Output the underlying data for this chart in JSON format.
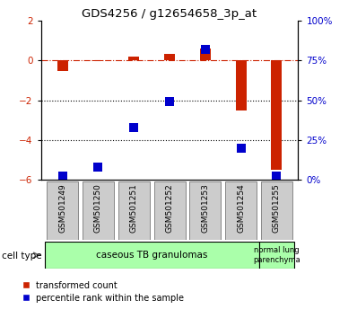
{
  "title": "GDS4256 / g12654658_3p_at",
  "samples": [
    "GSM501249",
    "GSM501250",
    "GSM501251",
    "GSM501252",
    "GSM501253",
    "GSM501254",
    "GSM501255"
  ],
  "red_values": [
    -0.55,
    -0.05,
    0.2,
    0.35,
    0.6,
    -2.5,
    -5.5
  ],
  "blue_percentiles": [
    2,
    8,
    33,
    49,
    82,
    20,
    2
  ],
  "ylim_left": [
    -6,
    2
  ],
  "ylim_right": [
    0,
    100
  ],
  "yticks_left": [
    -6,
    -4,
    -2,
    0,
    2
  ],
  "yticks_right": [
    0,
    25,
    50,
    75,
    100
  ],
  "ytick_labels_right": [
    "0%",
    "25%",
    "50%",
    "75%",
    "100%"
  ],
  "red_color": "#cc2200",
  "blue_color": "#0000cc",
  "bar_width": 0.3,
  "hline_color": "#cc2200",
  "dotted_line_color": "#000000",
  "legend_red": "transformed count",
  "legend_blue": "percentile rank within the sample",
  "group1_label": "caseous TB granulomas",
  "group2_label": "normal lung\nparenchyma",
  "group_color": "#aaffaa",
  "box_color": "#cccccc",
  "box_edge_color": "#888888"
}
